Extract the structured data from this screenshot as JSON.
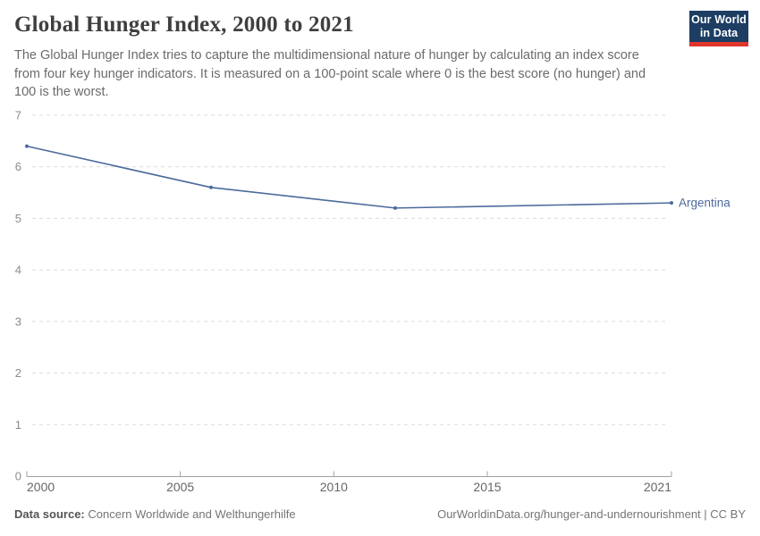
{
  "header": {
    "title": "Global Hunger Index, 2000 to 2021",
    "subtitle": "The Global Hunger Index tries to capture the multidimensional nature of hunger by calculating an index score from four key hunger indicators. It is measured on a 100-point scale where 0 is the best score (no hunger) and 100 is the worst."
  },
  "logo": {
    "line1": "Our World",
    "line2": "in Data",
    "bg_color": "#1d3d63",
    "accent_color": "#e0352b"
  },
  "chart_data": {
    "type": "line",
    "title": "Global Hunger Index, 2000 to 2021",
    "xlabel": "",
    "ylabel": "",
    "xlim": [
      2000,
      2021
    ],
    "ylim": [
      0,
      7
    ],
    "xticks": [
      "2000",
      "2005",
      "2010",
      "2015",
      "2021"
    ],
    "xtick_values": [
      2000,
      2005,
      2010,
      2015,
      2021
    ],
    "yticks": [
      0,
      1,
      2,
      3,
      4,
      5,
      6,
      7
    ],
    "grid": "horizontal-dashed",
    "legend_position": "line-end-label",
    "colors": {
      "line": "#4c6a9c",
      "grid": "#dcdcdc",
      "axis": "#a0a0a0",
      "ytick_label": "#8b8b8b",
      "xtick_label": "#666666"
    },
    "series": [
      {
        "name": "Argentina",
        "color": "#4c6a9c",
        "x": [
          2000,
          2006,
          2012,
          2021
        ],
        "values": [
          6.4,
          5.6,
          5.2,
          5.3
        ]
      }
    ]
  },
  "footer": {
    "source_label": "Data source:",
    "source_value": "Concern Worldwide and Welthungerhilfe",
    "link": "OurWorldinData.org/hunger-and-undernourishment | CC BY"
  }
}
